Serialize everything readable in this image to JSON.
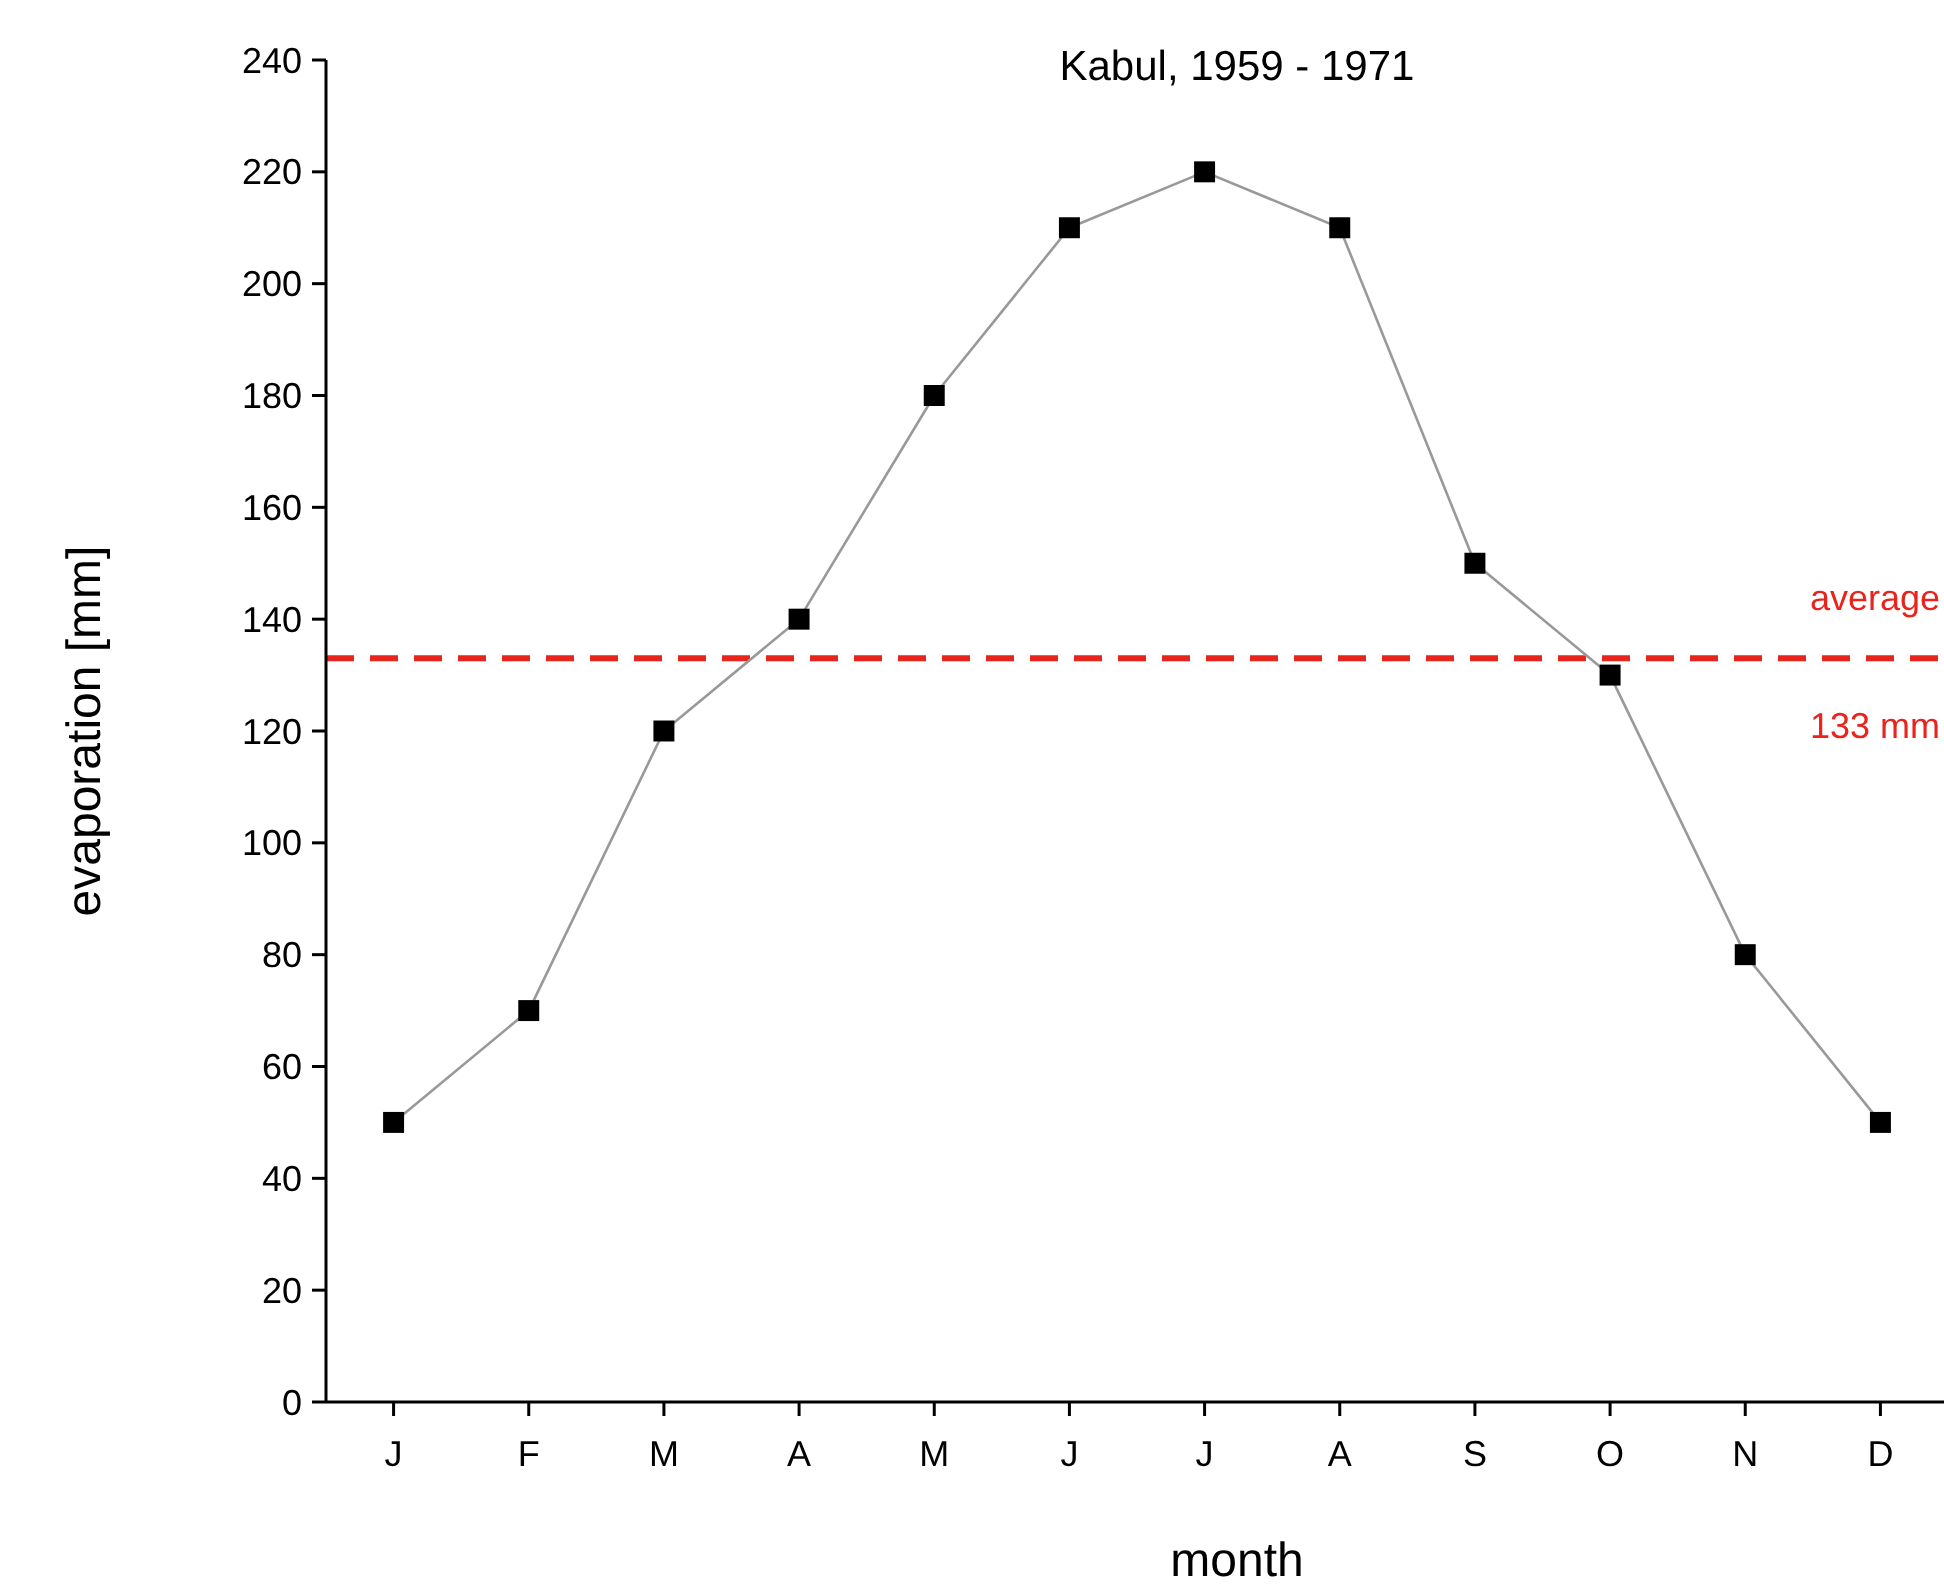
{
  "chart_data": {
    "type": "line",
    "title": "Kabul, 1959 - 1971",
    "xlabel": "month",
    "ylabel": "evaporation [mm]",
    "categories": [
      "J",
      "F",
      "M",
      "A",
      "M",
      "J",
      "J",
      "A",
      "S",
      "O",
      "N",
      "D"
    ],
    "series": [
      {
        "color": "#999999",
        "values": [
          50,
          70,
          120,
          140,
          180,
          210,
          220,
          210,
          150,
          130,
          80,
          50
        ]
      }
    ],
    "marker": "square",
    "line_style": "solid",
    "ylim": [
      0,
      240
    ],
    "yticks": [
      0,
      20,
      40,
      60,
      80,
      100,
      120,
      140,
      160,
      180,
      200,
      220,
      240
    ],
    "ref_lines": [
      {
        "axis": "y",
        "value": 133,
        "label": "average",
        "color": "#e8241c",
        "line_style": "dashed"
      }
    ],
    "annotations": [
      {
        "text": "133 mm",
        "y": 133
      }
    ],
    "grid": false
  }
}
